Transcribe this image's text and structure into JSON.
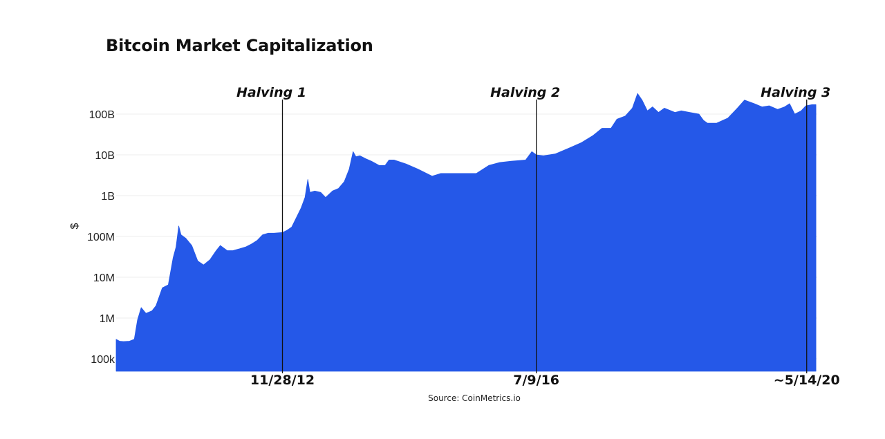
{
  "chart_data": {
    "type": "area",
    "title": "Bitcoin Market Capitalization",
    "source": "Source: CoinMetrics.io",
    "xlabel": "",
    "ylabel": "$",
    "yscale": "log",
    "ylim": [
      50000,
      300000000000
    ],
    "y_ticks": [
      {
        "value": 100000,
        "label": "100k"
      },
      {
        "value": 1000000,
        "label": "1M"
      },
      {
        "value": 10000000,
        "label": "10M"
      },
      {
        "value": 100000000,
        "label": "100M"
      },
      {
        "value": 1000000000,
        "label": "1B"
      },
      {
        "value": 10000000000,
        "label": "10B"
      },
      {
        "value": 100000000000,
        "label": "100B"
      }
    ],
    "xlim": [
      "2010-07-18",
      "2020-07-15"
    ],
    "fill_color": "#2558e8",
    "gridlines": true,
    "events": [
      {
        "label": "Halving 1",
        "date": "2012-11-28",
        "date_label": "11/28/12"
      },
      {
        "label": "Halving 2",
        "date": "2016-07-09",
        "date_label": "7/9/16"
      },
      {
        "label": "Halving 3",
        "date": "2020-05-14",
        "date_label": "~5/14/20"
      }
    ],
    "x": [
      "2010-07-18",
      "2010-08-05",
      "2010-08-25",
      "2010-09-25",
      "2010-10-20",
      "2010-11-06",
      "2010-11-25",
      "2010-12-20",
      "2011-01-20",
      "2011-02-10",
      "2011-03-15",
      "2011-04-15",
      "2011-05-10",
      "2011-05-25",
      "2011-06-08",
      "2011-06-20",
      "2011-07-15",
      "2011-08-15",
      "2011-09-15",
      "2011-10-15",
      "2011-11-18",
      "2011-12-20",
      "2012-01-10",
      "2012-02-15",
      "2012-03-15",
      "2012-04-20",
      "2012-05-20",
      "2012-06-20",
      "2012-07-20",
      "2012-08-17",
      "2012-09-15",
      "2012-10-15",
      "2012-11-28",
      "2012-12-20",
      "2013-01-15",
      "2013-02-10",
      "2013-03-05",
      "2013-03-25",
      "2013-04-09",
      "2013-04-20",
      "2013-05-15",
      "2013-06-15",
      "2013-07-10",
      "2013-08-15",
      "2013-09-15",
      "2013-10-15",
      "2013-11-10",
      "2013-11-30",
      "2013-12-15",
      "2014-01-05",
      "2014-02-05",
      "2014-03-05",
      "2014-04-15",
      "2014-05-15",
      "2014-06-05",
      "2014-07-01",
      "2014-09-01",
      "2014-11-01",
      "2015-01-15",
      "2015-03-01",
      "2015-06-01",
      "2015-09-01",
      "2015-11-05",
      "2016-01-01",
      "2016-03-01",
      "2016-05-15",
      "2016-06-16",
      "2016-07-09",
      "2016-08-15",
      "2016-10-15",
      "2016-12-31",
      "2017-03-01",
      "2017-05-01",
      "2017-06-15",
      "2017-08-01",
      "2017-09-01",
      "2017-10-15",
      "2017-11-20",
      "2017-12-17",
      "2018-01-10",
      "2018-02-06",
      "2018-03-05",
      "2018-04-05",
      "2018-05-05",
      "2018-06-30",
      "2018-08-01",
      "2018-09-15",
      "2018-11-01",
      "2018-11-25",
      "2018-12-15",
      "2019-02-01",
      "2019-04-01",
      "2019-05-20",
      "2019-06-26",
      "2019-08-15",
      "2019-09-25",
      "2019-11-01",
      "2019-12-15",
      "2020-01-20",
      "2020-02-15",
      "2020-03-13",
      "2020-04-15",
      "2020-05-10",
      "2020-06-10",
      "2020-07-01"
    ],
    "values": [
      300000,
      270000,
      265000,
      270000,
      300000,
      900000,
      1800000,
      1300000,
      1500000,
      2000000,
      5500000,
      6500000,
      30000000,
      55000000,
      180000000,
      110000000,
      90000000,
      60000000,
      25000000,
      20000000,
      27000000,
      45000000,
      60000000,
      45000000,
      45000000,
      50000000,
      55000000,
      65000000,
      80000000,
      110000000,
      120000000,
      120000000,
      125000000,
      140000000,
      170000000,
      300000000,
      500000000,
      900000000,
      2500000000,
      1200000000,
      1300000000,
      1200000000,
      900000000,
      1300000000,
      1500000000,
      2200000000,
      4500000000,
      12000000000,
      9000000000,
      9500000000,
      8000000000,
      7000000000,
      5500000000,
      5500000000,
      7500000000,
      7500000000,
      6000000000,
      4500000000,
      3000000000,
      3500000000,
      3500000000,
      3500000000,
      5500000000,
      6500000000,
      7000000000,
      7500000000,
      12000000000,
      10000000000,
      9500000000,
      10500000000,
      15000000000,
      20000000000,
      30000000000,
      45000000000,
      45000000000,
      75000000000,
      90000000000,
      140000000000,
      320000000000,
      220000000000,
      120000000000,
      150000000000,
      110000000000,
      140000000000,
      110000000000,
      120000000000,
      110000000000,
      100000000000,
      70000000000,
      60000000000,
      60000000000,
      80000000000,
      140000000000,
      220000000000,
      180000000000,
      150000000000,
      160000000000,
      130000000000,
      150000000000,
      180000000000,
      100000000000,
      120000000000,
      160000000000,
      170000000000,
      170000000000
    ]
  }
}
